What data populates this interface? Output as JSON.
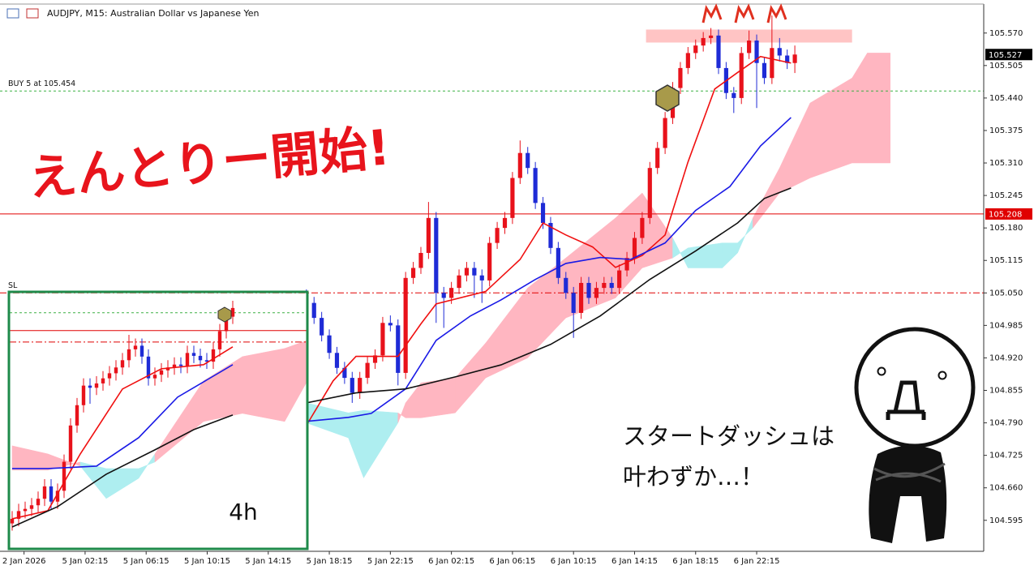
{
  "chart_data": [
    {
      "type": "candlestick",
      "title": "AUDJPY, M15:  Australian Dollar vs Japanese Yen",
      "headline": "えんとりー開始!",
      "caption": [
        "スタートダッシュは",
        "叶わずか…！"
      ],
      "colors": {
        "up": "#e8121b",
        "down": "#1e2bd6"
      },
      "x": [
        58,
        60,
        62,
        64,
        66,
        68,
        70,
        72,
        74,
        76,
        78,
        80,
        82,
        84,
        86,
        88,
        90,
        92,
        94,
        96,
        98,
        100,
        102,
        104,
        106,
        108,
        110,
        112,
        114,
        116,
        118,
        120,
        122,
        124,
        126,
        128,
        130,
        132,
        134,
        136,
        138,
        140,
        142,
        144,
        146,
        148,
        150,
        152,
        154,
        156,
        158,
        160,
        162,
        164,
        166,
        168,
        170,
        172,
        174,
        176,
        178,
        180,
        182,
        184,
        186
      ],
      "open": [
        105.045,
        105.03,
        105.0,
        104.965,
        104.93,
        104.9,
        104.88,
        104.85,
        104.88,
        104.91,
        104.925,
        104.99,
        104.985,
        104.89,
        105.08,
        105.1,
        105.13,
        105.2,
        105.05,
        105.04,
        105.06,
        105.085,
        105.1,
        105.085,
        105.075,
        105.15,
        105.18,
        105.2,
        105.28,
        105.33,
        105.3,
        105.23,
        105.19,
        105.14,
        105.08,
        105.05,
        105.01,
        105.07,
        105.04,
        105.06,
        105.07,
        105.06,
        105.095,
        105.12,
        105.16,
        105.2,
        105.3,
        105.34,
        105.4,
        105.46,
        105.5,
        105.53,
        105.545,
        105.56,
        105.565,
        105.5,
        105.45,
        105.44,
        105.53,
        105.555,
        105.51,
        105.48,
        105.54,
        105.525,
        105.51
      ],
      "high": [
        105.057,
        105.042,
        105.012,
        104.977,
        104.942,
        104.912,
        104.892,
        104.892,
        104.922,
        104.937,
        105.002,
        105.005,
        104.997,
        105.092,
        105.112,
        105.142,
        105.232,
        105.212,
        105.062,
        105.072,
        105.097,
        105.112,
        105.112,
        105.097,
        105.162,
        105.192,
        105.212,
        105.292,
        105.355,
        105.342,
        105.312,
        105.242,
        105.202,
        105.152,
        105.092,
        105.062,
        105.082,
        105.082,
        105.072,
        105.082,
        105.082,
        105.107,
        105.132,
        105.172,
        105.212,
        105.312,
        105.352,
        105.412,
        105.472,
        105.512,
        105.542,
        105.557,
        105.572,
        105.58,
        105.577,
        105.512,
        105.462,
        105.542,
        105.575,
        105.567,
        105.522,
        105.605,
        105.56,
        105.537,
        105.545
      ],
      "low": [
        105.018,
        104.988,
        104.953,
        104.918,
        104.888,
        104.868,
        104.83,
        104.838,
        104.868,
        104.898,
        104.913,
        104.973,
        104.865,
        104.878,
        105.068,
        105.088,
        105.118,
        104.99,
        104.98,
        105.028,
        105.048,
        105.073,
        105.04,
        105.03,
        105.063,
        105.138,
        105.168,
        105.188,
        105.268,
        105.288,
        105.218,
        105.178,
        105.128,
        105.068,
        105.038,
        104.96,
        104.998,
        105.028,
        105.028,
        105.048,
        105.048,
        105.048,
        105.083,
        105.108,
        105.148,
        105.188,
        105.288,
        105.328,
        105.388,
        105.448,
        105.488,
        105.518,
        105.533,
        105.548,
        105.488,
        105.438,
        105.41,
        105.428,
        105.518,
        105.42,
        105.468,
        105.468,
        105.513,
        105.498,
        105.49
      ],
      "close": [
        105.03,
        105.0,
        104.965,
        104.93,
        104.9,
        104.88,
        104.85,
        104.88,
        104.91,
        104.925,
        104.99,
        104.985,
        104.89,
        105.08,
        105.1,
        105.13,
        105.2,
        105.05,
        105.04,
        105.06,
        105.085,
        105.1,
        105.085,
        105.075,
        105.15,
        105.18,
        105.2,
        105.28,
        105.33,
        105.3,
        105.23,
        105.19,
        105.14,
        105.08,
        105.05,
        105.01,
        105.07,
        105.04,
        105.06,
        105.07,
        105.06,
        105.095,
        105.12,
        105.16,
        105.2,
        105.3,
        105.34,
        105.4,
        105.46,
        105.5,
        105.53,
        105.545,
        105.56,
        105.565,
        105.5,
        105.45,
        105.44,
        105.53,
        105.555,
        105.51,
        105.48,
        105.54,
        105.525,
        105.51,
        105.527
      ],
      "lines": [
        {
          "color": "#f01010",
          "x": [
            58,
            65,
            71,
            82,
            88,
            92,
            105,
            114,
            120,
            126,
            133,
            139,
            146,
            152,
            158,
            165,
            171,
            177,
            185
          ],
          "values": [
            104.785,
            104.874,
            104.923,
            104.923,
            104.988,
            105.028,
            105.053,
            105.117,
            105.19,
            105.166,
            105.142,
            105.101,
            105.125,
            105.166,
            105.312,
            105.458,
            105.491,
            105.523,
            105.51
          ]
        },
        {
          "color": "#1a1ae6",
          "x": [
            58,
            69,
            75,
            84,
            92,
            101,
            109,
            118,
            126,
            135,
            143,
            152,
            160,
            169,
            177,
            185
          ],
          "values": [
            104.793,
            104.801,
            104.809,
            104.858,
            104.955,
            105.004,
            105.036,
            105.077,
            105.109,
            105.121,
            105.117,
            105.15,
            105.215,
            105.263,
            105.344,
            105.401
          ]
        },
        {
          "color": "#111111",
          "x": [
            58,
            71,
            84,
            97,
            109,
            122,
            135,
            148,
            160,
            171,
            178,
            185
          ],
          "values": [
            104.83,
            104.85,
            104.858,
            104.882,
            104.906,
            104.947,
            105.004,
            105.077,
            105.134,
            105.19,
            105.239,
            105.26
          ]
        }
      ],
      "cloud": {
        "colors": [
          "#ffb6c1",
          "#aeeef0"
        ],
        "x": [
          58,
          69,
          73,
          82,
          84,
          88,
          97,
          105,
          116,
          126,
          139,
          146,
          154,
          158,
          167,
          171,
          175,
          182,
          190,
          201,
          205,
          211
        ],
        "span_a": [
          104.79,
          104.76,
          104.68,
          104.79,
          104.83,
          104.87,
          104.88,
          104.95,
          105.06,
          105.12,
          105.2,
          105.25,
          105.16,
          105.1,
          105.1,
          105.13,
          105.2,
          105.3,
          105.43,
          105.48,
          105.53,
          105.53
        ],
        "span_b": [
          104.83,
          104.81,
          104.815,
          104.81,
          104.8,
          104.8,
          104.81,
          104.88,
          104.92,
          105.0,
          105.04,
          105.1,
          105.12,
          105.14,
          105.15,
          105.15,
          105.18,
          105.25,
          105.28,
          105.31,
          105.31,
          105.31
        ]
      },
      "zone": {
        "color": "#ffc4c4",
        "x": [
          147,
          201
        ],
        "values": [
          105.551,
          105.577
        ]
      },
      "levels": [
        {
          "label": "BUY 5 at 105.454",
          "value": 105.454,
          "color": "#3cb043",
          "style": "dotted"
        },
        {
          "value": 105.208,
          "color": "#e00000",
          "style": "solid",
          "price_tag": true
        },
        {
          "label": "SL",
          "value": 105.05,
          "color": "#e00000",
          "style": "dashdot"
        }
      ],
      "last_price": 105.527,
      "xlim": [
        -22.3,
        235.5
      ],
      "ylim": [
        104.533,
        105.628
      ],
      "xticks": [
        {
          "value": -16,
          "label": "2 Jan 2026"
        },
        {
          "value": 0,
          "label": "5 Jan 02:15"
        },
        {
          "value": 16,
          "label": "5 Jan 06:15"
        },
        {
          "value": 32,
          "label": "5 Jan 10:15"
        },
        {
          "value": 48,
          "label": "5 Jan 14:15"
        },
        {
          "value": 64,
          "label": "5 Jan 18:15"
        },
        {
          "value": 80,
          "label": "5 Jan 22:15"
        },
        {
          "value": 96,
          "label": "6 Jan 02:15"
        },
        {
          "value": 112,
          "label": "6 Jan 06:15"
        },
        {
          "value": 128,
          "label": "6 Jan 10:15"
        },
        {
          "value": 144,
          "label": "6 Jan 14:15"
        },
        {
          "value": 160,
          "label": "6 Jan 18:15"
        },
        {
          "value": 176,
          "label": "6 Jan 22:15"
        }
      ],
      "yticks": [
        {
          "value": 105.57,
          "label": "105.570"
        },
        {
          "value": 105.505,
          "label": "105.505"
        },
        {
          "value": 105.44,
          "label": "105.440"
        },
        {
          "value": 105.375,
          "label": "105.375"
        },
        {
          "value": 105.31,
          "label": "105.310"
        },
        {
          "value": 105.245,
          "label": "105.245"
        },
        {
          "value": 105.18,
          "label": "105.180"
        },
        {
          "value": 105.115,
          "label": "105.115"
        },
        {
          "value": 105.05,
          "label": "105.050"
        },
        {
          "value": 104.985,
          "label": "104.985"
        },
        {
          "value": 104.92,
          "label": "104.920"
        },
        {
          "value": 104.855,
          "label": "104.855"
        },
        {
          "value": 104.79,
          "label": "104.790"
        },
        {
          "value": 104.725,
          "label": "104.725"
        },
        {
          "value": 104.66,
          "label": "104.660"
        },
        {
          "value": 104.595,
          "label": "104.595"
        }
      ]
    },
    {
      "type": "candlestick",
      "label": "4h",
      "colors": {
        "up": "#e8121b",
        "down": "#1e2bd6"
      },
      "x": [
        0,
        2,
        4,
        6,
        8,
        10,
        12,
        14,
        16,
        18,
        20,
        22,
        24,
        26,
        28,
        30,
        32,
        34,
        36,
        38,
        40,
        42,
        44,
        46,
        48,
        50,
        52,
        54,
        56,
        58,
        60,
        62,
        64,
        66,
        68
      ],
      "open": [
        102.55,
        102.613,
        102.72,
        102.75,
        102.8,
        102.89,
        103.06,
        102.85,
        103.0,
        103.4,
        103.9,
        104.18,
        104.45,
        104.42,
        104.48,
        104.55,
        104.62,
        104.7,
        104.8,
        104.95,
        105.0,
        104.85,
        104.55,
        104.6,
        104.66,
        104.7,
        104.74,
        104.72,
        104.9,
        104.86,
        104.8,
        104.78,
        104.95,
        105.2,
        105.4
      ],
      "high": [
        102.72,
        102.82,
        102.85,
        102.9,
        102.99,
        103.16,
        103.16,
        103.1,
        103.5,
        104.0,
        104.28,
        104.55,
        104.55,
        104.58,
        104.65,
        104.72,
        104.8,
        104.9,
        105.15,
        105.1,
        105.1,
        104.95,
        104.7,
        104.76,
        104.8,
        104.84,
        104.84,
        105.0,
        105.0,
        104.96,
        104.9,
        105.05,
        105.3,
        105.5,
        105.62
      ],
      "low": [
        102.45,
        102.51,
        102.62,
        102.65,
        102.7,
        102.79,
        102.75,
        102.75,
        102.9,
        103.3,
        103.8,
        104.08,
        104.2,
        104.32,
        104.38,
        104.45,
        104.52,
        104.6,
        104.7,
        104.85,
        104.75,
        104.45,
        104.45,
        104.5,
        104.56,
        104.6,
        104.62,
        104.62,
        104.76,
        104.7,
        104.68,
        104.68,
        104.85,
        105.1,
        105.3
      ],
      "close": [
        102.613,
        102.72,
        102.75,
        102.8,
        102.89,
        103.06,
        102.85,
        103.0,
        103.4,
        103.9,
        104.18,
        104.45,
        104.42,
        104.48,
        104.55,
        104.62,
        104.7,
        104.8,
        104.95,
        105.0,
        104.85,
        104.55,
        104.6,
        104.66,
        104.7,
        104.74,
        104.72,
        104.9,
        104.86,
        104.8,
        104.78,
        104.95,
        105.2,
        105.4,
        105.52
      ],
      "lines": [
        {
          "color": "#f01010",
          "x": [
            0,
            11,
            21,
            34,
            46,
            59,
            68
          ],
          "values": [
            102.613,
            102.725,
            103.508,
            104.403,
            104.682,
            104.738,
            104.984
          ]
        },
        {
          "color": "#1a1ae6",
          "x": [
            0,
            11,
            26,
            39,
            51,
            68
          ],
          "values": [
            103.306,
            103.306,
            103.34,
            103.732,
            104.291,
            104.738
          ]
        },
        {
          "color": "#111111",
          "x": [
            0,
            14,
            29,
            44,
            56,
            68
          ],
          "values": [
            102.501,
            102.781,
            103.228,
            103.564,
            103.843,
            104.045
          ]
        }
      ],
      "cloud": {
        "colors": [
          "#ffb6c1",
          "#aeeef0"
        ],
        "x": [
          0,
          11,
          21,
          29,
          39,
          44,
          59,
          71,
          84,
          91
        ],
        "span_a": [
          103.62,
          103.508,
          103.34,
          102.893,
          103.172,
          103.508,
          104.515,
          104.85,
          104.962,
          105.074
        ],
        "span_b": [
          103.284,
          103.284,
          103.396,
          103.306,
          103.306,
          103.396,
          103.955,
          104.067,
          103.955,
          104.515
        ]
      },
      "levels": [
        {
          "value": 105.454,
          "color": "#3cb043",
          "style": "dotted"
        },
        {
          "value": 105.208,
          "color": "#e00000",
          "style": "solid"
        },
        {
          "value": 105.05,
          "color": "#e00000",
          "style": "dashdot"
        }
      ],
      "xlim": [
        -0.75,
        90.75
      ],
      "ylim": [
        102.21,
        105.72
      ]
    }
  ]
}
